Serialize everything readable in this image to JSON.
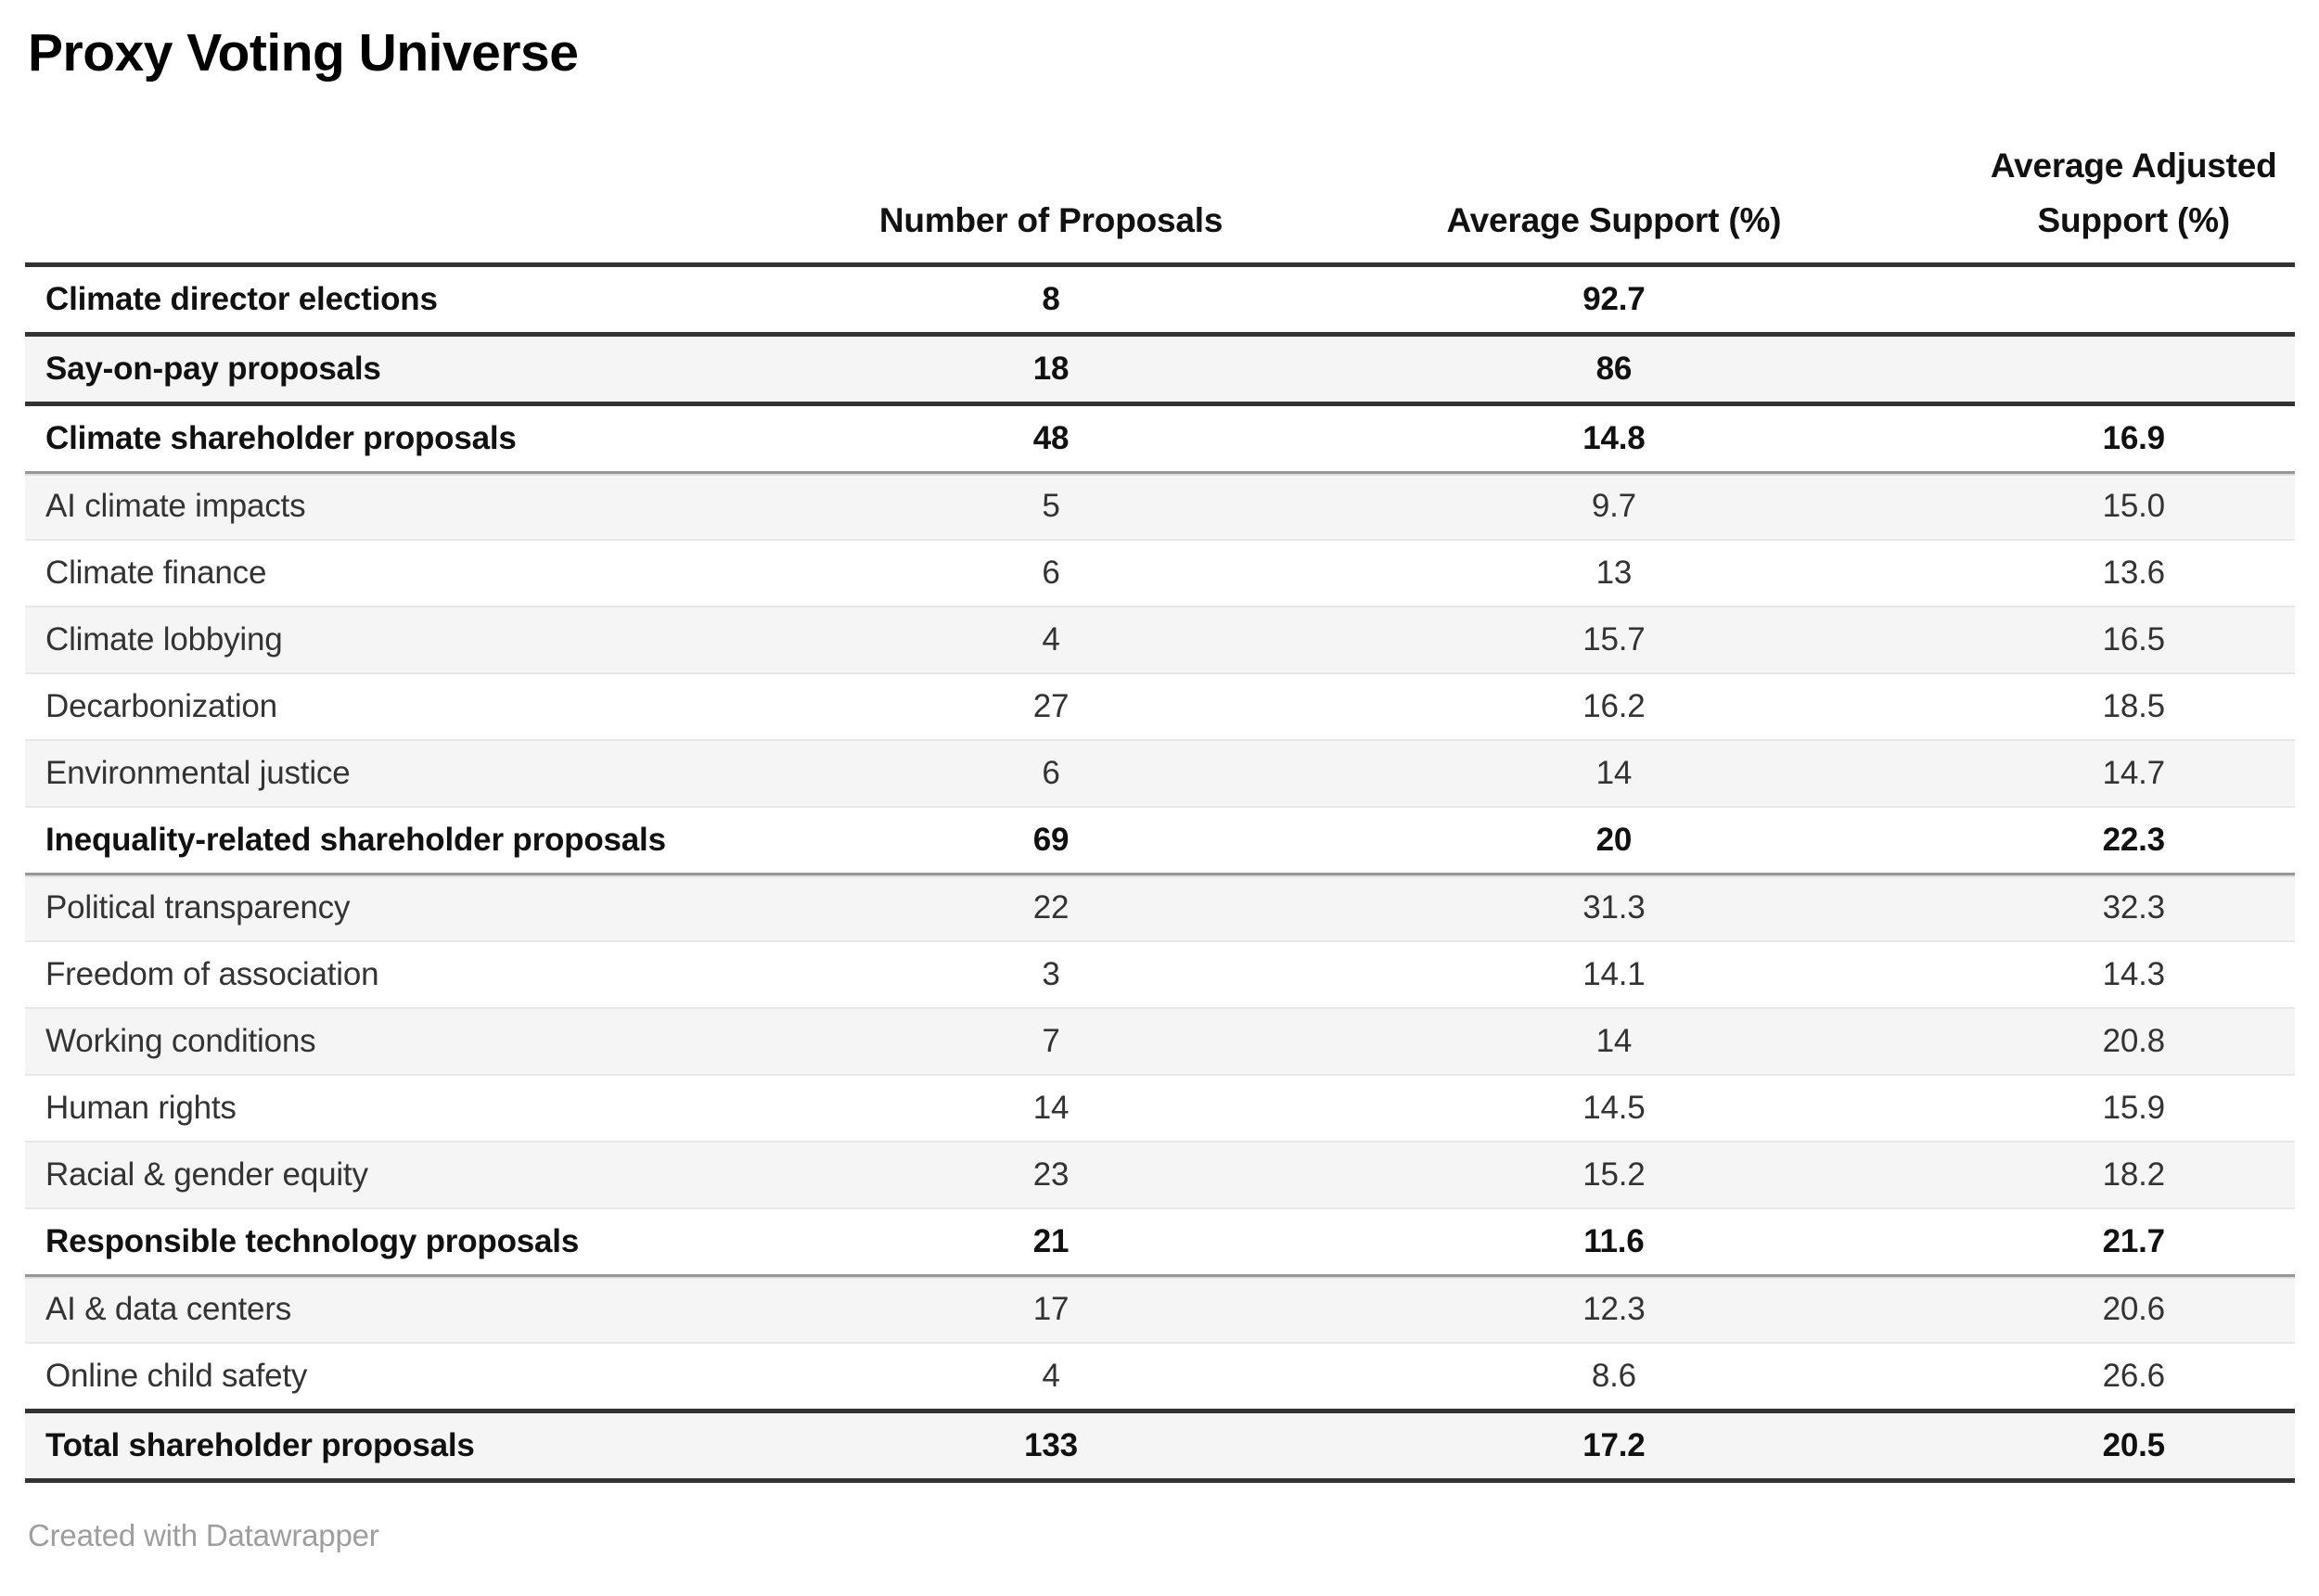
{
  "title": "Proxy Voting Universe",
  "table": {
    "columns": [
      "",
      "Number of Proposals",
      "Average Support (%)",
      "Average Adjusted Support (%)"
    ],
    "rows": [
      {
        "label": "Climate director elections",
        "proposals": "8",
        "support": "92.7",
        "adjusted": "",
        "emphasis": true,
        "rule": "strong"
      },
      {
        "label": "Say-on-pay proposals",
        "proposals": "18",
        "support": "86",
        "adjusted": "",
        "emphasis": true,
        "rule": "strong"
      },
      {
        "label": "Climate shareholder proposals",
        "proposals": "48",
        "support": "14.8",
        "adjusted": "16.9",
        "emphasis": true,
        "rule": "strong"
      },
      {
        "label": "AI climate impacts",
        "proposals": "5",
        "support": "9.7",
        "adjusted": "15.0",
        "emphasis": false,
        "rule": "medium"
      },
      {
        "label": "Climate finance",
        "proposals": "6",
        "support": "13",
        "adjusted": "13.6",
        "emphasis": false,
        "rule": "light"
      },
      {
        "label": "Climate lobbying",
        "proposals": "4",
        "support": "15.7",
        "adjusted": "16.5",
        "emphasis": false,
        "rule": "light"
      },
      {
        "label": "Decarbonization",
        "proposals": "27",
        "support": "16.2",
        "adjusted": "18.5",
        "emphasis": false,
        "rule": "light"
      },
      {
        "label": "Environmental justice",
        "proposals": "6",
        "support": "14",
        "adjusted": "14.7",
        "emphasis": false,
        "rule": "light"
      },
      {
        "label": "Inequality-related shareholder proposals",
        "proposals": "69",
        "support": "20",
        "adjusted": "22.3",
        "emphasis": true,
        "rule": "light"
      },
      {
        "label": "Political transparency",
        "proposals": "22",
        "support": "31.3",
        "adjusted": "32.3",
        "emphasis": false,
        "rule": "medium"
      },
      {
        "label": "Freedom of association",
        "proposals": "3",
        "support": "14.1",
        "adjusted": "14.3",
        "emphasis": false,
        "rule": "light"
      },
      {
        "label": "Working conditions",
        "proposals": "7",
        "support": "14",
        "adjusted": "20.8",
        "emphasis": false,
        "rule": "light"
      },
      {
        "label": "Human rights",
        "proposals": "14",
        "support": "14.5",
        "adjusted": "15.9",
        "emphasis": false,
        "rule": "light"
      },
      {
        "label": "Racial & gender equity",
        "proposals": "23",
        "support": "15.2",
        "adjusted": "18.2",
        "emphasis": false,
        "rule": "light"
      },
      {
        "label": "Responsible technology proposals",
        "proposals": "21",
        "support": "11.6",
        "adjusted": "21.7",
        "emphasis": true,
        "rule": "light"
      },
      {
        "label": "AI & data centers",
        "proposals": "17",
        "support": "12.3",
        "adjusted": "20.6",
        "emphasis": false,
        "rule": "medium"
      },
      {
        "label": "Online child safety",
        "proposals": "4",
        "support": "8.6",
        "adjusted": "26.6",
        "emphasis": false,
        "rule": "light"
      },
      {
        "label": "Total shareholder proposals",
        "proposals": "133",
        "support": "17.2",
        "adjusted": "20.5",
        "emphasis": true,
        "rule": "strong"
      }
    ]
  },
  "footer": {
    "credit": "Created with Datawrapper"
  },
  "colors": {
    "border_strong": "#333333",
    "border_medium": "#979797",
    "border_light": "#e8e8e8",
    "stripe": "#f5f5f5",
    "credit_text": "#9e9e9e"
  },
  "chart_data": {
    "type": "table",
    "title": "Proxy Voting Universe",
    "columns": [
      "Number of Proposals",
      "Average Support (%)",
      "Average Adjusted Support (%)"
    ],
    "rows": [
      {
        "label": "Climate director elections",
        "group": true,
        "values": [
          8,
          92.7,
          null
        ]
      },
      {
        "label": "Say-on-pay proposals",
        "group": true,
        "values": [
          18,
          86,
          null
        ]
      },
      {
        "label": "Climate shareholder proposals",
        "group": true,
        "values": [
          48,
          14.8,
          16.9
        ]
      },
      {
        "label": "AI climate impacts",
        "group": false,
        "values": [
          5,
          9.7,
          15.0
        ]
      },
      {
        "label": "Climate finance",
        "group": false,
        "values": [
          6,
          13,
          13.6
        ]
      },
      {
        "label": "Climate lobbying",
        "group": false,
        "values": [
          4,
          15.7,
          16.5
        ]
      },
      {
        "label": "Decarbonization",
        "group": false,
        "values": [
          27,
          16.2,
          18.5
        ]
      },
      {
        "label": "Environmental justice",
        "group": false,
        "values": [
          6,
          14,
          14.7
        ]
      },
      {
        "label": "Inequality-related shareholder proposals",
        "group": true,
        "values": [
          69,
          20,
          22.3
        ]
      },
      {
        "label": "Political transparency",
        "group": false,
        "values": [
          22,
          31.3,
          32.3
        ]
      },
      {
        "label": "Freedom of association",
        "group": false,
        "values": [
          3,
          14.1,
          14.3
        ]
      },
      {
        "label": "Working conditions",
        "group": false,
        "values": [
          7,
          14,
          20.8
        ]
      },
      {
        "label": "Human rights",
        "group": false,
        "values": [
          14,
          14.5,
          15.9
        ]
      },
      {
        "label": "Racial & gender equity",
        "group": false,
        "values": [
          23,
          15.2,
          18.2
        ]
      },
      {
        "label": "Responsible technology proposals",
        "group": true,
        "values": [
          21,
          11.6,
          21.7
        ]
      },
      {
        "label": "AI & data centers",
        "group": false,
        "values": [
          17,
          12.3,
          20.6
        ]
      },
      {
        "label": "Online child safety",
        "group": false,
        "values": [
          4,
          8.6,
          26.6
        ]
      },
      {
        "label": "Total shareholder proposals",
        "group": true,
        "values": [
          133,
          17.2,
          20.5
        ]
      }
    ]
  }
}
